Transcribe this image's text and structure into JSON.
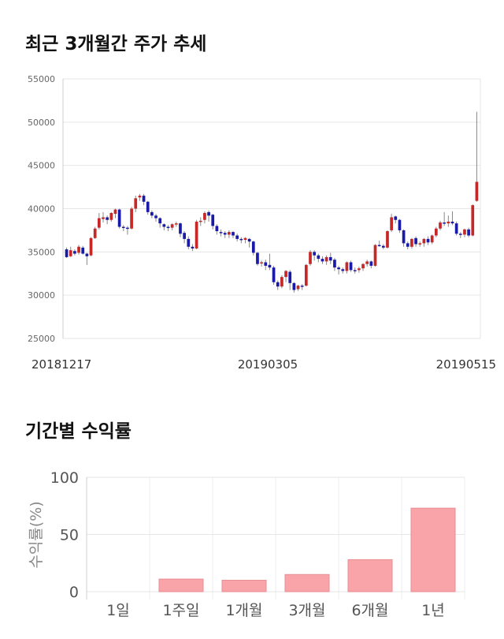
{
  "sections": {
    "price_title": "최근 3개월간 주가 추세",
    "returns_title": "기간별 수익률"
  },
  "chart_data": [
    {
      "type": "candlestick",
      "title": "최근 3개월간 주가 추세",
      "ylim": [
        25000,
        55000
      ],
      "y_ticks": [
        "55000",
        "50000",
        "45000",
        "40000",
        "35000",
        "30000",
        "25000"
      ],
      "x_ticks": [
        "20181217",
        "20190305",
        "20190515"
      ],
      "grid": true,
      "colors": {
        "up": "#c62828",
        "down": "#1a1aa8",
        "wick": "#888888"
      },
      "candles": [
        [
          35300,
          34400,
          35500,
          34300
        ],
        [
          34500,
          35200,
          35600,
          34400
        ],
        [
          35100,
          34800,
          35300,
          34600
        ],
        [
          34900,
          35600,
          35800,
          34700
        ],
        [
          35500,
          34800,
          35700,
          34700
        ],
        [
          34800,
          34500,
          34900,
          33500
        ],
        [
          34600,
          36600,
          36700,
          34500
        ],
        [
          36600,
          37700,
          37900,
          36500
        ],
        [
          37800,
          38900,
          39500,
          37600
        ],
        [
          38800,
          39000,
          39600,
          38400
        ],
        [
          39000,
          38700,
          39200,
          38200
        ],
        [
          38700,
          39500,
          39600,
          38500
        ],
        [
          39400,
          39900,
          40000,
          38900
        ],
        [
          39900,
          37900,
          40000,
          37700
        ],
        [
          37900,
          37800,
          38100,
          37400
        ],
        [
          37800,
          37700,
          38000,
          37000
        ],
        [
          37700,
          40000,
          40200,
          37600
        ],
        [
          40000,
          41200,
          41500,
          39600
        ],
        [
          41300,
          41500,
          41700,
          40900
        ],
        [
          41500,
          40800,
          41700,
          40400
        ],
        [
          40800,
          39600,
          40900,
          39300
        ],
        [
          39600,
          39200,
          39800,
          38900
        ],
        [
          39200,
          38900,
          39400,
          38500
        ],
        [
          38900,
          38300,
          39000,
          37800
        ],
        [
          38200,
          37900,
          38300,
          37500
        ],
        [
          37900,
          37800,
          38100,
          37400
        ],
        [
          37800,
          38200,
          38300,
          37500
        ],
        [
          38200,
          38300,
          38500,
          37900
        ],
        [
          38300,
          37100,
          38400,
          36700
        ],
        [
          37200,
          36500,
          37400,
          36000
        ],
        [
          36500,
          35600,
          36800,
          35300
        ],
        [
          35600,
          35400,
          35900,
          35100
        ],
        [
          35400,
          38500,
          38700,
          35300
        ],
        [
          38500,
          38600,
          39000,
          38000
        ],
        [
          38700,
          39500,
          39700,
          38300
        ],
        [
          39600,
          39200,
          39800,
          38500
        ],
        [
          39300,
          38000,
          39400,
          37600
        ],
        [
          38000,
          37400,
          38200,
          37000
        ],
        [
          37300,
          37200,
          37600,
          36800
        ],
        [
          37200,
          37000,
          37400,
          36600
        ],
        [
          37000,
          37300,
          37500,
          36600
        ],
        [
          37300,
          36900,
          37400,
          36600
        ],
        [
          36900,
          36500,
          37100,
          36200
        ],
        [
          36500,
          36400,
          36700,
          36000
        ],
        [
          36400,
          36600,
          36700,
          36000
        ],
        [
          36500,
          36200,
          36600,
          35500
        ],
        [
          36200,
          34900,
          36300,
          34600
        ],
        [
          34900,
          33600,
          35000,
          33400
        ],
        [
          33700,
          33800,
          34000,
          33300
        ],
        [
          33800,
          33400,
          34100,
          32900
        ],
        [
          33500,
          33200,
          34800,
          32900
        ],
        [
          33200,
          31500,
          33400,
          31200
        ],
        [
          31500,
          31000,
          31700,
          30600
        ],
        [
          31000,
          32100,
          32300,
          30800
        ],
        [
          32100,
          32800,
          32900,
          31500
        ],
        [
          32700,
          31400,
          32900,
          30600
        ],
        [
          31400,
          30600,
          31500,
          30300
        ],
        [
          30700,
          31100,
          31200,
          30500
        ],
        [
          31100,
          31000,
          31300,
          30600
        ],
        [
          31100,
          33500,
          33600,
          31000
        ],
        [
          33600,
          35000,
          35200,
          33400
        ],
        [
          35000,
          34600,
          35200,
          34000
        ],
        [
          34600,
          34200,
          34800,
          33800
        ],
        [
          34200,
          33900,
          34500,
          33600
        ],
        [
          33900,
          34400,
          34600,
          33500
        ],
        [
          34400,
          34000,
          34900,
          33600
        ],
        [
          34100,
          33200,
          34300,
          32800
        ],
        [
          33200,
          33000,
          33400,
          32400
        ],
        [
          33000,
          32800,
          33200,
          32500
        ],
        [
          32800,
          33800,
          33900,
          32500
        ],
        [
          33800,
          32900,
          34000,
          32700
        ],
        [
          32900,
          32800,
          33200,
          32500
        ],
        [
          32900,
          33100,
          33300,
          32600
        ],
        [
          33100,
          33600,
          33700,
          32800
        ],
        [
          33600,
          33900,
          34100,
          33300
        ],
        [
          33900,
          33400,
          34000,
          33100
        ],
        [
          33400,
          35800,
          35900,
          33300
        ],
        [
          35800,
          35700,
          36300,
          35600
        ],
        [
          35700,
          35500,
          35900,
          35300
        ],
        [
          35500,
          37400,
          37500,
          35400
        ],
        [
          37500,
          39000,
          39400,
          37300
        ],
        [
          39100,
          38700,
          39200,
          38300
        ],
        [
          38700,
          37500,
          38800,
          37200
        ],
        [
          37500,
          36000,
          37600,
          35600
        ],
        [
          36000,
          35600,
          36200,
          35300
        ],
        [
          35600,
          36500,
          36600,
          35400
        ],
        [
          36600,
          35900,
          36800,
          35600
        ],
        [
          35900,
          36000,
          36200,
          35600
        ],
        [
          36000,
          36500,
          36600,
          35600
        ],
        [
          36500,
          36100,
          36800,
          35800
        ],
        [
          36100,
          36900,
          37000,
          35900
        ],
        [
          36900,
          37700,
          37900,
          36700
        ],
        [
          37700,
          38400,
          38600,
          37500
        ],
        [
          38400,
          38300,
          39600,
          38000
        ],
        [
          38300,
          38500,
          39200,
          37900
        ],
        [
          38500,
          38300,
          39700,
          38100
        ],
        [
          38300,
          37100,
          38500,
          36900
        ],
        [
          37100,
          37000,
          37300,
          36600
        ],
        [
          37000,
          37600,
          37700,
          36700
        ],
        [
          37600,
          36900,
          37800,
          36700
        ],
        [
          36900,
          40400,
          40500,
          36800
        ],
        [
          40900,
          43100,
          51200,
          40800
        ]
      ]
    },
    {
      "type": "bar",
      "title": "기간별 수익률",
      "categories": [
        "1일",
        "1주일",
        "1개월",
        "3개월",
        "6개월",
        "1년"
      ],
      "values": [
        0,
        11,
        10,
        15,
        28,
        73
      ],
      "ylabel": "수익률(%)",
      "ylim": [
        0,
        100
      ],
      "y_ticks": [
        "100",
        "50",
        "0"
      ],
      "grid": true,
      "colors": {
        "bar": "#f8a4a8",
        "bar_edge": "#e88d92"
      }
    }
  ]
}
